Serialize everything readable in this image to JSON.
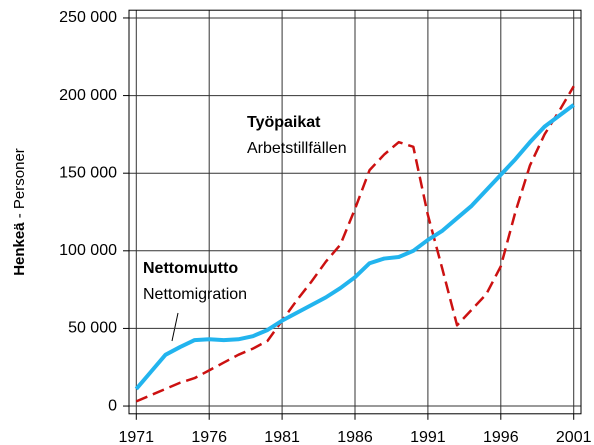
{
  "chart_data": {
    "type": "line",
    "ylabel_parts": [
      "Henkeä",
      "- Personer"
    ],
    "x": [
      1971,
      1972,
      1973,
      1974,
      1975,
      1976,
      1977,
      1978,
      1979,
      1980,
      1981,
      1982,
      1983,
      1984,
      1985,
      1986,
      1987,
      1988,
      1989,
      1990,
      1991,
      1992,
      1993,
      1994,
      1995,
      1996,
      1997,
      1998,
      1999,
      2000,
      2001
    ],
    "series": [
      {
        "name": "Työpaikat",
        "subtitle": "Arbetstillfällen",
        "color": "#cc1111",
        "dash": true,
        "values": [
          3000,
          7000,
          11000,
          15000,
          18000,
          23000,
          28000,
          33000,
          37000,
          42000,
          55000,
          68000,
          80000,
          93000,
          104000,
          127000,
          152000,
          162000,
          170000,
          167000,
          123000,
          88000,
          52000,
          62000,
          72000,
          90000,
          125000,
          155000,
          175000,
          190000,
          206000
        ]
      },
      {
        "name": "Nettomuutto",
        "subtitle": "Nettomigration",
        "color": "#22b4ee",
        "dash": false,
        "values": [
          11000,
          22000,
          33000,
          38000,
          42500,
          43000,
          42500,
          43000,
          45000,
          49000,
          55000,
          60000,
          65000,
          70000,
          76000,
          83000,
          92000,
          95000,
          96000,
          100000,
          107000,
          113000,
          121000,
          129000,
          139000,
          149000,
          159000,
          170000,
          180000,
          187000,
          194000
        ]
      }
    ],
    "xlim": [
      1970.5,
      2001.5
    ],
    "xticks": [
      1971,
      1976,
      1981,
      1986,
      1991,
      1996,
      2001
    ],
    "ylim": [
      -5000,
      255000
    ],
    "yticks": [
      0,
      {
        "value": 50000,
        "label": "50 000"
      },
      {
        "value": 100000,
        "label": "100 000"
      },
      {
        "value": 150000,
        "label": "150 000"
      },
      {
        "value": 200000,
        "label": "200 000"
      },
      {
        "value": 250000,
        "label": "250 000"
      }
    ],
    "grid": true
  }
}
